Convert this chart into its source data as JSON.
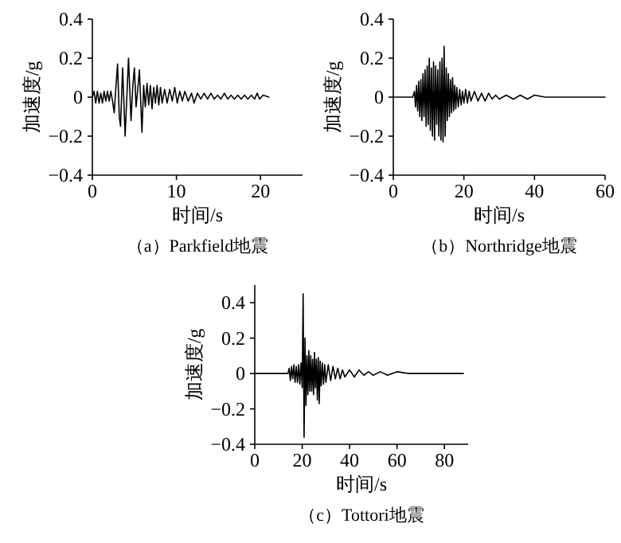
{
  "chart_data": [
    {
      "type": "line",
      "xlabel": "时间/s",
      "ylabel": "加速度/g",
      "annotations": [
        "（a）Parkfield地震"
      ],
      "xlim": [
        0,
        25
      ],
      "ylim": [
        -0.4,
        0.4
      ],
      "xticks": [
        0,
        10,
        20
      ],
      "yticks": [
        -0.4,
        -0.2,
        0,
        0.2,
        0.4
      ],
      "series": [
        {
          "color": "#000000",
          "x": [
            0,
            0.2,
            0.4,
            0.6,
            0.8,
            1.0,
            1.2,
            1.4,
            1.6,
            1.8,
            2.0,
            2.2,
            2.4,
            2.6,
            2.8,
            3.0,
            3.2,
            3.35,
            3.6,
            3.9,
            4.3,
            4.6,
            4.8,
            5.0,
            5.2,
            5.4,
            5.6,
            5.9,
            6.1,
            6.3,
            6.5,
            6.7,
            6.9,
            7.1,
            7.3,
            7.5,
            7.7,
            7.9,
            8.1,
            8.3,
            8.6,
            8.9,
            9.2,
            9.5,
            9.8,
            10.1,
            10.4,
            10.7,
            11.0,
            11.4,
            11.8,
            12.1,
            12.5,
            12.9,
            13.3,
            13.7,
            14.1,
            14.5,
            14.9,
            15.3,
            15.7,
            16.1,
            16.5,
            16.9,
            17.3,
            17.7,
            18.1,
            18.5,
            18.9,
            19.3,
            19.6,
            19.9,
            20.3,
            21
          ],
          "values": [
            0,
            0.03,
            -0.03,
            0.03,
            -0.03,
            0.02,
            -0.03,
            0.03,
            -0.02,
            0.03,
            -0.02,
            0.03,
            -0.02,
            -0.08,
            0.05,
            0.17,
            -0.1,
            -0.15,
            0.15,
            -0.2,
            0.2,
            -0.12,
            0.05,
            0.15,
            -0.05,
            0.04,
            0.14,
            -0.18,
            0.06,
            -0.05,
            0.07,
            -0.04,
            0.06,
            -0.06,
            0.05,
            -0.03,
            0.06,
            -0.04,
            0.05,
            -0.03,
            0.04,
            -0.03,
            0.04,
            -0.02,
            0.05,
            -0.03,
            0.03,
            -0.02,
            0.03,
            -0.02,
            0.02,
            -0.03,
            0.02,
            -0.01,
            0.02,
            -0.01,
            0.02,
            -0.01,
            0.01,
            -0.01,
            0.02,
            -0.01,
            0.01,
            -0.01,
            0.01,
            -0.01,
            0.01,
            -0.01,
            0.01,
            -0.01,
            0.02,
            -0.01,
            0.01,
            0
          ]
        }
      ]
    },
    {
      "type": "line",
      "xlabel": "时间/s",
      "ylabel": "加速度/g",
      "annotations": [
        "（b）Northridge地震"
      ],
      "xlim": [
        0,
        60
      ],
      "ylim": [
        -0.4,
        0.4
      ],
      "xticks": [
        0,
        20,
        40,
        60
      ],
      "yticks": [
        -0.4,
        -0.2,
        0,
        0.2,
        0.4
      ],
      "series": [
        {
          "color": "#000000",
          "x": [
            0,
            5.5,
            6,
            6.3,
            6.6,
            6.9,
            7.2,
            7.5,
            7.8,
            8.1,
            8.4,
            8.7,
            9,
            9.3,
            9.6,
            9.9,
            10.2,
            10.5,
            10.8,
            11.1,
            11.4,
            11.7,
            12,
            12.3,
            12.6,
            12.9,
            13.2,
            13.5,
            13.8,
            14.1,
            14.4,
            14.7,
            15,
            15.3,
            15.6,
            15.9,
            16.2,
            16.5,
            16.8,
            17.1,
            17.4,
            17.7,
            18,
            18.4,
            18.8,
            19.2,
            19.6,
            20,
            20.5,
            21,
            21.5,
            22,
            23,
            24,
            25,
            26,
            27,
            28,
            29,
            30,
            32,
            34,
            36,
            38,
            40,
            43,
            46,
            50,
            60
          ],
          "values": [
            0,
            0,
            0.03,
            -0.05,
            0.06,
            -0.07,
            0.08,
            -0.1,
            0.09,
            -0.12,
            0.12,
            -0.1,
            0.14,
            -0.15,
            0.16,
            -0.14,
            0.2,
            -0.17,
            0.15,
            -0.2,
            0.18,
            -0.22,
            0.16,
            -0.14,
            0.14,
            -0.2,
            0.18,
            -0.22,
            0.2,
            -0.23,
            0.26,
            -0.2,
            0.15,
            -0.12,
            0.12,
            -0.1,
            0.09,
            -0.08,
            0.1,
            -0.07,
            0.06,
            -0.06,
            0.05,
            -0.05,
            0.04,
            -0.04,
            0.03,
            -0.03,
            0.04,
            -0.03,
            0.03,
            -0.02,
            0.03,
            -0.02,
            0.02,
            -0.02,
            0.02,
            -0.01,
            0.01,
            -0.01,
            0.01,
            -0.01,
            0.01,
            -0.01,
            0.01,
            0,
            0,
            0,
            0
          ]
        }
      ]
    },
    {
      "type": "line",
      "xlabel": "时间/s",
      "ylabel": "加速度/g",
      "annotations": [
        "（c）Tottori地震"
      ],
      "xlim": [
        0,
        90
      ],
      "ylim": [
        -0.4,
        0.5
      ],
      "xticks": [
        0,
        20,
        40,
        60,
        80
      ],
      "yticks": [
        -0.4,
        -0.2,
        0,
        0.2,
        0.4
      ],
      "series": [
        {
          "color": "#000000",
          "x": [
            0,
            14,
            14.5,
            15,
            15.5,
            16,
            16.5,
            17,
            17.5,
            18,
            18.5,
            19,
            19.5,
            20,
            20.4,
            20.8,
            21.2,
            21.6,
            22,
            22.4,
            22.8,
            23.2,
            23.6,
            24,
            24.4,
            24.8,
            25.2,
            25.6,
            26,
            26.4,
            26.8,
            27.2,
            27.6,
            28,
            28.5,
            29,
            29.5,
            30,
            31,
            32,
            33,
            34,
            35,
            36,
            37,
            38,
            40,
            42,
            44,
            46,
            48,
            50,
            53,
            56,
            60,
            65,
            70,
            75,
            80,
            85,
            88
          ],
          "values": [
            0,
            0,
            0.03,
            -0.04,
            0.04,
            -0.03,
            0.05,
            -0.05,
            0.04,
            -0.05,
            0.05,
            -0.06,
            0.06,
            -0.08,
            0.45,
            -0.36,
            0.2,
            -0.18,
            0.1,
            -0.12,
            0.13,
            -0.1,
            0.1,
            -0.1,
            0.08,
            -0.12,
            0.12,
            -0.08,
            0.08,
            -0.15,
            0.09,
            -0.17,
            0.07,
            -0.07,
            0.06,
            -0.06,
            0.05,
            -0.05,
            0.05,
            -0.04,
            0.04,
            -0.03,
            0.03,
            -0.03,
            0.02,
            -0.02,
            0.02,
            -0.02,
            0.02,
            -0.01,
            0.01,
            -0.01,
            0.01,
            -0.01,
            0.01,
            0,
            0,
            0,
            0,
            0,
            0
          ]
        }
      ]
    }
  ]
}
